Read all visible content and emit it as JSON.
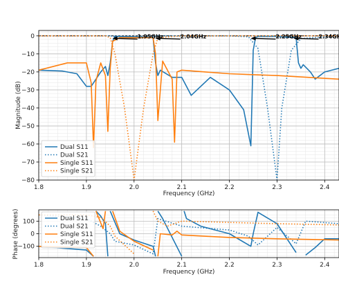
{
  "chart_data": [
    {
      "type": "line",
      "xlabel": "Frequency (GHz)",
      "ylabel": "Magnitude (dB)",
      "xlim": [
        1.8,
        2.43
      ],
      "ylim": [
        -80,
        3
      ],
      "xticks": [
        "1.8",
        "1.9",
        "2.0",
        "2.1",
        "2.2",
        "2.3",
        "2.4"
      ],
      "xtick_values": [
        1.8,
        1.9,
        2.0,
        2.1,
        2.2,
        2.3,
        2.4
      ],
      "yticks": [
        "0",
        "−10",
        "−20",
        "−30",
        "−40",
        "−50",
        "−60",
        "−70",
        "−80"
      ],
      "ytick_values": [
        0,
        -10,
        -20,
        -30,
        -40,
        -50,
        -60,
        -70,
        -80
      ],
      "grid": true,
      "legend": "lower-left",
      "series": [
        {
          "name": "Dual S11",
          "color": "#1f77b4",
          "style": "solid",
          "x": [
            1.8,
            1.85,
            1.88,
            1.9,
            1.91,
            1.93,
            1.94,
            1.945,
            1.95,
            1.955,
            1.96,
            2.0,
            2.04,
            2.045,
            2.05,
            2.055,
            2.08,
            2.1,
            2.12,
            2.16,
            2.2,
            2.23,
            2.245,
            2.25,
            2.255,
            2.26,
            2.3,
            2.34,
            2.345,
            2.35,
            2.355,
            2.37,
            2.38,
            2.4,
            2.43
          ],
          "y": [
            -19,
            -19.5,
            -21,
            -28,
            -28,
            -20,
            -17,
            -22,
            -15,
            -3,
            -0.3,
            -0.5,
            -1,
            -15,
            -22,
            -19,
            -23,
            -23,
            -33,
            -23,
            -30,
            -41,
            -61,
            -8,
            -1,
            -0.3,
            -0.3,
            -1,
            -15,
            -18,
            -16,
            -20,
            -24,
            -20,
            -18
          ]
        },
        {
          "name": "Dual S21",
          "color": "#1f77b4",
          "style": "dotted",
          "x": [
            1.8,
            1.9,
            1.95,
            1.96,
            2.04,
            2.05,
            2.2,
            2.24,
            2.26,
            2.28,
            2.3,
            2.31,
            2.33,
            2.35,
            2.43
          ],
          "y": [
            0,
            0,
            0,
            -0.3,
            -0.3,
            0,
            0,
            -0.5,
            -7,
            -40,
            -80,
            -40,
            -8,
            -1.5,
            0
          ]
        },
        {
          "name": "Single S11",
          "color": "#ff7f0e",
          "style": "solid",
          "x": [
            1.8,
            1.86,
            1.9,
            1.91,
            1.915,
            1.92,
            1.93,
            1.94,
            1.945,
            1.95,
            1.955,
            1.97,
            2.0,
            2.04,
            2.045,
            2.05,
            2.06,
            2.08,
            2.085,
            2.09,
            2.1,
            2.15,
            2.2,
            2.3,
            2.43
          ],
          "y": [
            -19,
            -15,
            -15,
            -26,
            -62,
            -25,
            -15,
            -22,
            -53,
            -18,
            -3,
            -1,
            -1,
            -1,
            -10,
            -47,
            -14,
            -24,
            -59,
            -20,
            -19,
            -20,
            -21,
            -22,
            -24
          ]
        },
        {
          "name": "Single S21",
          "color": "#ff7f0e",
          "style": "dotted",
          "x": [
            1.8,
            1.9,
            1.94,
            1.95,
            1.96,
            1.98,
            2.0,
            2.02,
            2.04,
            2.05,
            2.1,
            2.43
          ],
          "y": [
            0,
            0,
            0,
            -1,
            -10,
            -40,
            -80,
            -40,
            -10,
            -1,
            0,
            0
          ]
        }
      ],
      "annotations": [
        {
          "text": "1.95GHz",
          "x": 2.01,
          "y": -1
        },
        {
          "text": "2.04GHz",
          "x": 2.1,
          "y": -1
        },
        {
          "text": "2.25GHz",
          "x": 2.3,
          "y": -1
        },
        {
          "text": "2.34GHz",
          "x": 2.39,
          "y": -1
        }
      ]
    },
    {
      "type": "line",
      "xlabel": "Frequency (GHz)",
      "ylabel": "Phase (degrees)",
      "xlim": [
        1.8,
        2.43
      ],
      "ylim": [
        -190,
        190
      ],
      "xticks": [
        "1.8",
        "1.9",
        "2.0",
        "2.1",
        "2.2",
        "2.3",
        "2.4"
      ],
      "xtick_values": [
        1.8,
        1.9,
        2.0,
        2.1,
        2.2,
        2.3,
        2.4
      ],
      "yticks": [
        "100",
        "0",
        "−100"
      ],
      "ytick_values": [
        100,
        0,
        -100
      ],
      "grid": true,
      "legend": "upper-left",
      "series": [
        {
          "name": "Dual S11",
          "color": "#1f77b4",
          "style": "solid",
          "x": [
            1.8,
            1.9,
            1.915,
            1.92,
            1.93,
            1.94,
            1.945,
            1.95,
            1.96,
            1.97,
            2.0,
            2.04,
            2.045,
            2.05,
            2.06,
            2.1,
            2.105,
            2.11,
            2.14,
            2.17,
            2.2,
            2.245,
            2.25,
            2.26,
            2.3,
            2.34,
            2.35,
            2.36,
            2.38,
            2.4,
            2.43
          ],
          "y": [
            -100,
            -130,
            -180,
            180,
            140,
            80,
            -180,
            180,
            90,
            0,
            -50,
            -100,
            -180,
            180,
            120,
            -180,
            180,
            120,
            60,
            30,
            0,
            -100,
            0,
            170,
            80,
            -150,
            180,
            -170,
            -110,
            -40,
            -40
          ]
        },
        {
          "name": "Dual S21",
          "color": "#1f77b4",
          "style": "dotted",
          "x": [
            1.8,
            1.9,
            1.93,
            1.95,
            1.96,
            2.0,
            2.04,
            2.05,
            2.1,
            2.2,
            2.24,
            2.26,
            2.3,
            2.34,
            2.36,
            2.43
          ],
          "y": [
            150,
            120,
            60,
            0,
            -60,
            -90,
            -160,
            120,
            60,
            30,
            -20,
            -90,
            50,
            -80,
            100,
            80
          ]
        },
        {
          "name": "Single S11",
          "color": "#ff7f0e",
          "style": "solid",
          "x": [
            1.8,
            1.9,
            1.915,
            1.92,
            1.935,
            1.94,
            1.95,
            1.955,
            1.97,
            2.0,
            2.04,
            2.045,
            2.05,
            2.055,
            2.08,
            2.09,
            2.1,
            2.2,
            2.3,
            2.43
          ],
          "y": [
            -100,
            -110,
            -180,
            180,
            40,
            180,
            -180,
            180,
            20,
            -60,
            -130,
            180,
            -180,
            0,
            -10,
            20,
            -10,
            -30,
            -40,
            -50
          ]
        },
        {
          "name": "Single S21",
          "color": "#ff7f0e",
          "style": "dotted",
          "x": [
            1.8,
            1.9,
            1.93,
            1.95,
            1.96,
            2.0,
            2.04,
            2.05,
            2.07,
            2.1,
            2.2,
            2.3,
            2.43
          ],
          "y": [
            150,
            150,
            130,
            60,
            -20,
            -160,
            180,
            100,
            60,
            100,
            90,
            80,
            70
          ]
        }
      ]
    }
  ]
}
